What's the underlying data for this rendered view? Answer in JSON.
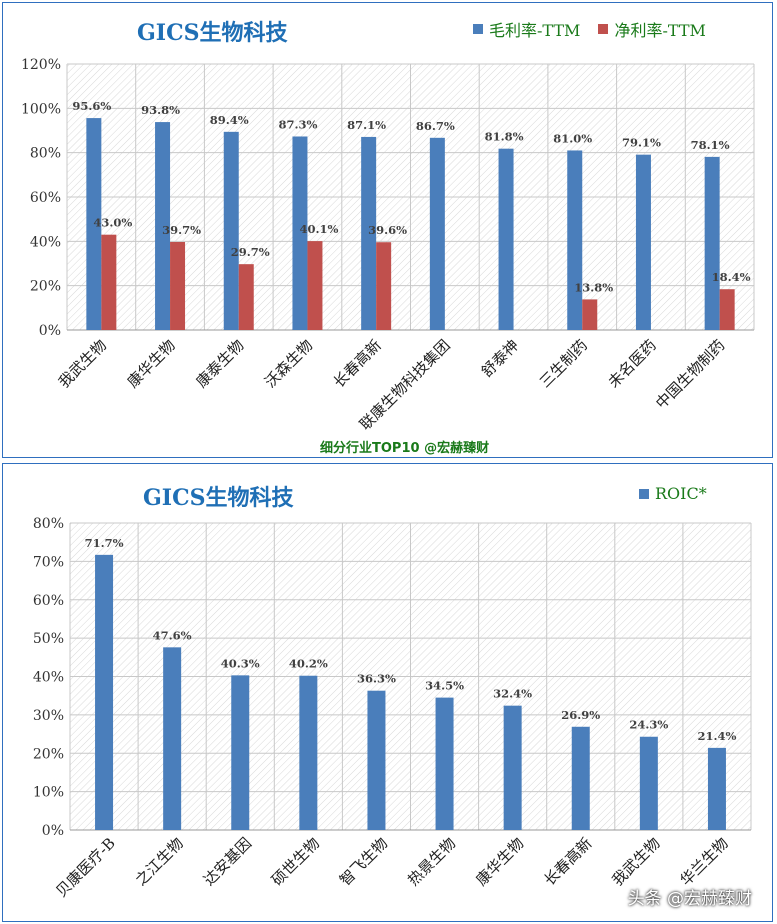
{
  "chart_data": [
    {
      "type": "bar",
      "title": "GICS生物科技",
      "categories": [
        "我武生物",
        "康华生物",
        "康泰生物",
        "沃森生物",
        "长春高新",
        "联康生物科技集团",
        "舒泰神",
        "三生制药",
        "未名医药",
        "中国生物制药"
      ],
      "series": [
        {
          "name": "毛利率-TTM",
          "color": "#4a7ebb",
          "values": [
            95.6,
            93.8,
            89.4,
            87.3,
            87.1,
            86.7,
            81.8,
            81.0,
            79.1,
            78.1
          ]
        },
        {
          "name": "净利率-TTM",
          "color": "#c0504d",
          "values": [
            43.0,
            39.7,
            29.7,
            40.1,
            39.6,
            null,
            null,
            13.8,
            null,
            18.4
          ]
        }
      ],
      "data_labels": {
        "0": [
          "95.6%",
          "93.8%",
          "89.4%",
          "87.3%",
          "87.1%",
          "86.7%",
          "81.8%",
          "81.0%",
          "79.1%",
          "78.1%"
        ],
        "1": [
          "43.0%",
          "39.7%",
          "29.7%",
          "40.1%",
          "39.6%",
          "",
          "",
          "13.8%",
          "",
          "18.4%"
        ]
      },
      "yticks": [
        "0%",
        "20%",
        "40%",
        "60%",
        "80%",
        "100%",
        "120%"
      ],
      "ylim": [
        0,
        120
      ],
      "grid": true,
      "legend_position": "top-right",
      "footer": "细分行业TOP10 @宏赫臻财"
    },
    {
      "type": "bar",
      "title": "GICS生物科技",
      "categories": [
        "贝康医疗-B",
        "之江生物",
        "达安基因",
        "硕世生物",
        "智飞生物",
        "热景生物",
        "康华生物",
        "长春高新",
        "我武生物",
        "华兰生物"
      ],
      "series": [
        {
          "name": "ROIC*",
          "color": "#4a7ebb",
          "values": [
            71.7,
            47.6,
            40.3,
            40.2,
            36.3,
            34.5,
            32.4,
            26.9,
            24.3,
            21.4
          ]
        }
      ],
      "data_labels": {
        "0": [
          "71.7%",
          "47.6%",
          "40.3%",
          "40.2%",
          "36.3%",
          "34.5%",
          "32.4%",
          "26.9%",
          "24.3%",
          "21.4%"
        ]
      },
      "yticks": [
        "0%",
        "10%",
        "20%",
        "30%",
        "40%",
        "50%",
        "60%",
        "70%",
        "80%"
      ],
      "ylim": [
        0,
        80
      ],
      "grid": true,
      "legend_position": "top-right"
    }
  ],
  "watermark": "头条 @宏赫臻财"
}
